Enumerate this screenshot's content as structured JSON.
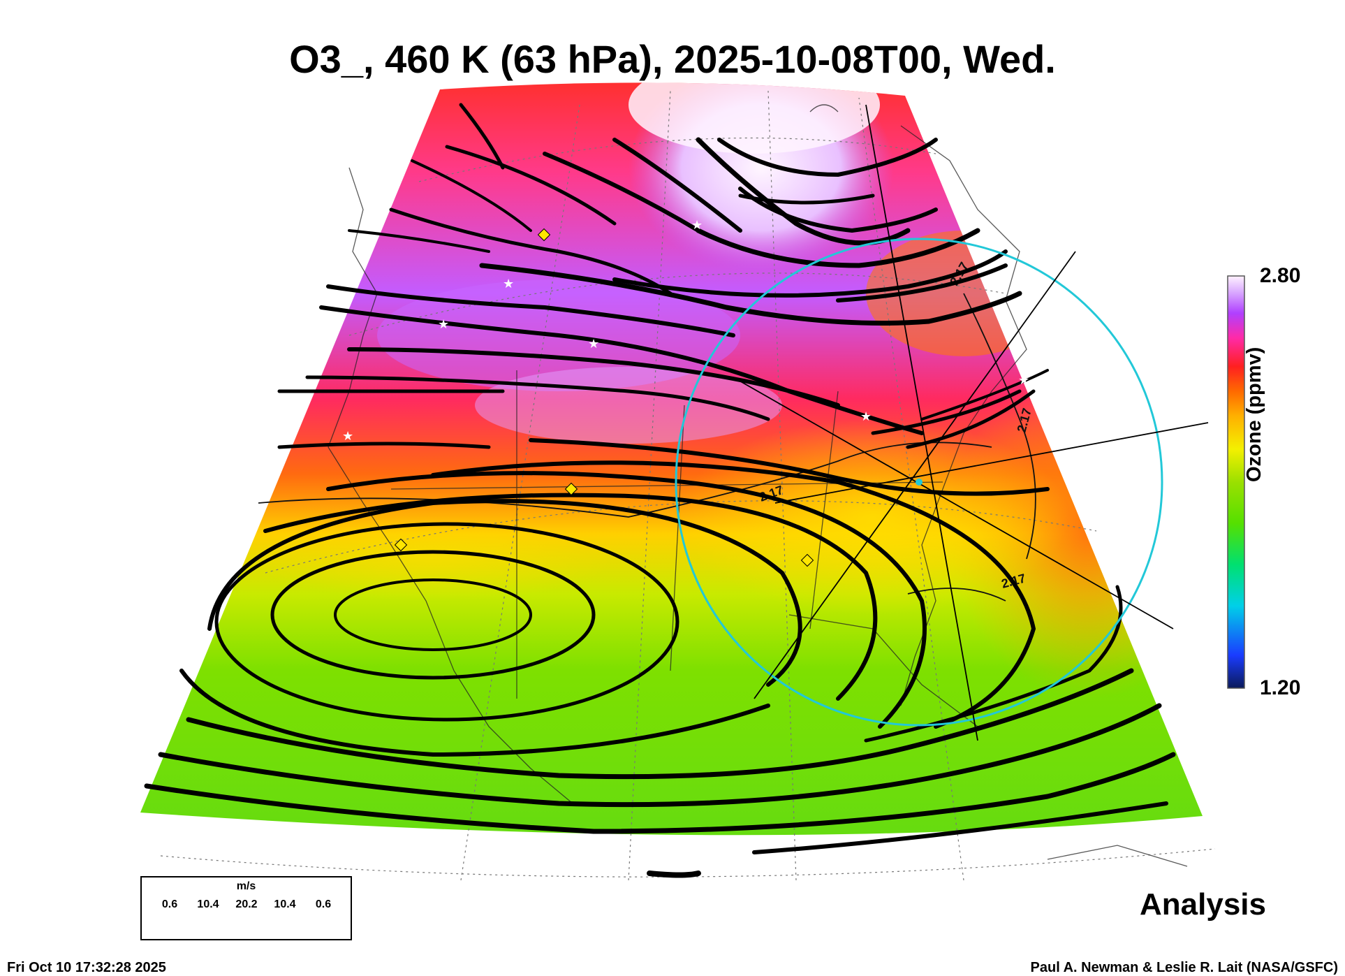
{
  "title": "O3_, 460 K (63 hPa), 2025-10-08T00, Wed.",
  "colorbar": {
    "max_label": "2.80",
    "min_label": "1.20",
    "title": "Ozone (ppmv)",
    "stops": [
      "#0b1a5a",
      "#1a3cff",
      "#00d0e8",
      "#00e070",
      "#55e000",
      "#9be000",
      "#f4f000",
      "#ffb000",
      "#ff6a00",
      "#ff2020",
      "#ff2aa8",
      "#b040ff",
      "#d9a8ff",
      "#fff2ff"
    ]
  },
  "contour_labels": [
    "2.17",
    "2.17",
    "2.17",
    "2.17"
  ],
  "wind_legend": {
    "units": "m/s",
    "ticks": [
      "0.6",
      "10.4",
      "20.2",
      "10.4",
      "0.6"
    ]
  },
  "analysis_label": "Analysis",
  "timestamp": "Fri Oct 10 17:32:28 2025",
  "credit": "Paul A. Newman & Leslie R. Lait (NASA/GSFC)",
  "colors": {
    "high_ozone": "#ff2020",
    "mid_ozone": "#f4f000",
    "low_ozone": "#55e000",
    "circle": "#22c8d8",
    "streamline": "#000000"
  }
}
